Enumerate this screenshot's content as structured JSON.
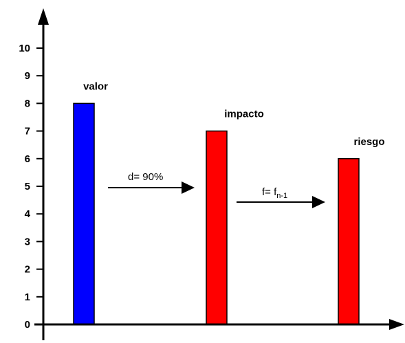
{
  "chart_data": {
    "type": "bar",
    "categories": [
      "valor",
      "impacto",
      "riesgo"
    ],
    "values": [
      8,
      7,
      6
    ],
    "ylim": [
      0,
      10
    ],
    "yticks": [
      "0",
      "1",
      "2",
      "3",
      "4",
      "5",
      "6",
      "7",
      "8",
      "9",
      "10"
    ],
    "bar_colors": [
      "#0000ff",
      "#ff0000",
      "#ff0000"
    ],
    "grid": false,
    "annotations": [
      {
        "text": "d= 90%",
        "from": "valor",
        "to": "impacto"
      },
      {
        "text": "f= f",
        "subscript": "n-1",
        "from": "impacto",
        "to": "riesgo"
      }
    ]
  }
}
